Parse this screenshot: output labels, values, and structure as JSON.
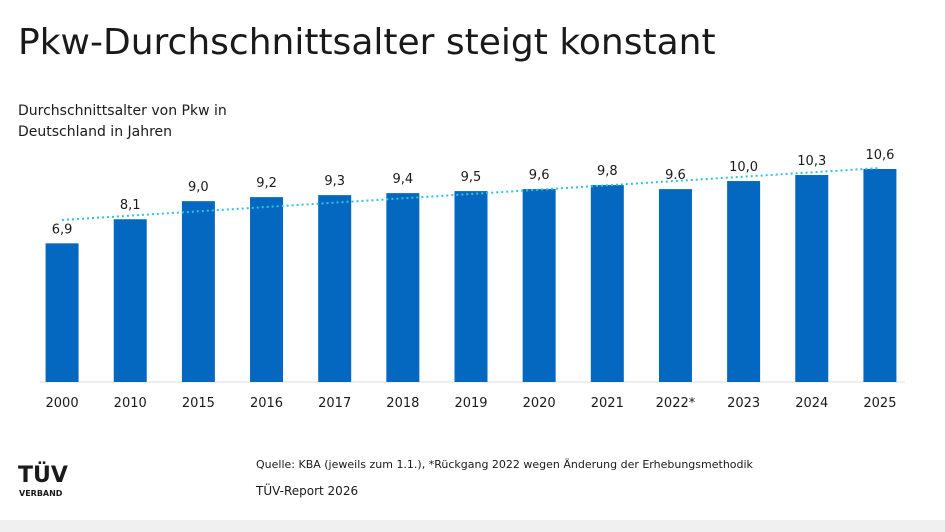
{
  "chart_data": {
    "type": "bar",
    "title": "Pkw-Durchschnittsalter steigt konstant",
    "subtitle": [
      "Durchschnittsalter von Pkw in",
      "Deutschland in Jahren"
    ],
    "categories": [
      "2000",
      "2010",
      "2015",
      "2016",
      "2017",
      "2018",
      "2019",
      "2020",
      "2021",
      "2022*",
      "2023",
      "2024",
      "2025"
    ],
    "values": [
      6.9,
      8.1,
      9.0,
      9.2,
      9.3,
      9.4,
      9.5,
      9.6,
      9.8,
      9.6,
      10.0,
      10.3,
      10.6
    ],
    "value_labels": [
      "6,9",
      "8,1",
      "9,0",
      "9,2",
      "9,3",
      "9,4",
      "9,5",
      "9,6",
      "9,8",
      "9.6",
      "10,0",
      "10,3",
      "10,6"
    ],
    "color": "#0568c0",
    "source": "Quelle: KBA (jeweils zum 1.1.), *Rückgang 2022 wegen Änderung der Erhebungsmethodik",
    "footer": "TÜV-Report 2026",
    "logo": {
      "name": "TÜV",
      "sub": "VERBAND"
    }
  }
}
